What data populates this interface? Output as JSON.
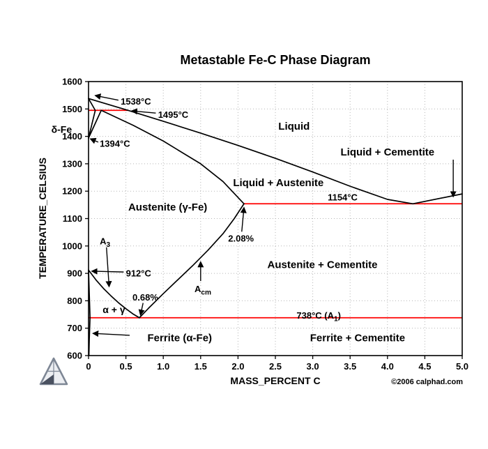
{
  "page": {
    "background": "#ffffff",
    "copyright": "©2006 calphad.com"
  },
  "chart_data": {
    "type": "line",
    "title": "Metastable Fe-C Phase Diagram",
    "xlabel": "MASS_PERCENT C",
    "ylabel": "TEMPERATURE_CELSIUS",
    "xlim": [
      0,
      5
    ],
    "ylim": [
      600,
      1600
    ],
    "xticks": [
      "0",
      "0.5",
      "1.0",
      "1.5",
      "2.0",
      "2.5",
      "3.0",
      "3.5",
      "4.0",
      "4.5",
      "5.0"
    ],
    "yticks": [
      600,
      700,
      800,
      900,
      1000,
      1100,
      1200,
      1300,
      1400,
      1500,
      1600
    ],
    "grid": true,
    "legend": "none",
    "colors": {
      "boundary": "#000000",
      "invariant": "#ff0000",
      "grid": "#b5b5b5",
      "frame": "#000000"
    },
    "series": [
      {
        "name": "liquidus",
        "color": "#000000",
        "points": [
          [
            0,
            1538
          ],
          [
            0.53,
            1495
          ],
          [
            1.0,
            1455
          ],
          [
            1.5,
            1412
          ],
          [
            2.0,
            1367
          ],
          [
            2.5,
            1320
          ],
          [
            3.0,
            1270
          ],
          [
            3.5,
            1218
          ],
          [
            4.0,
            1170
          ],
          [
            4.34,
            1154
          ],
          [
            5.0,
            1190
          ]
        ]
      },
      {
        "name": "delta-solidus",
        "color": "#000000",
        "points": [
          [
            0,
            1538
          ],
          [
            0.09,
            1495
          ]
        ]
      },
      {
        "name": "delta-gamma-upper",
        "color": "#000000",
        "points": [
          [
            0.09,
            1495
          ],
          [
            0,
            1394
          ]
        ]
      },
      {
        "name": "delta-gamma-lower",
        "color": "#000000",
        "points": [
          [
            0.17,
            1495
          ],
          [
            0,
            1394
          ]
        ]
      },
      {
        "name": "austenite-solidus",
        "color": "#000000",
        "points": [
          [
            0.17,
            1495
          ],
          [
            0.6,
            1440
          ],
          [
            1.0,
            1383
          ],
          [
            1.5,
            1300
          ],
          [
            1.8,
            1235
          ],
          [
            2.08,
            1154
          ]
        ]
      },
      {
        "name": "a3-line",
        "color": "#000000",
        "points": [
          [
            0,
            912
          ],
          [
            0.1,
            876
          ],
          [
            0.2,
            845
          ],
          [
            0.3,
            818
          ],
          [
            0.4,
            793
          ],
          [
            0.5,
            771
          ],
          [
            0.6,
            751
          ],
          [
            0.68,
            738
          ]
        ]
      },
      {
        "name": "acm-line",
        "color": "#000000",
        "points": [
          [
            0.68,
            738
          ],
          [
            0.8,
            772
          ],
          [
            1.0,
            826
          ],
          [
            1.2,
            878
          ],
          [
            1.4,
            930
          ],
          [
            1.6,
            985
          ],
          [
            1.8,
            1045
          ],
          [
            1.95,
            1100
          ],
          [
            2.08,
            1154
          ]
        ]
      },
      {
        "name": "alpha-solvus-upper",
        "color": "#000000",
        "points": [
          [
            0,
            912
          ],
          [
            0.02,
            738
          ]
        ]
      },
      {
        "name": "alpha-solvus-lower",
        "color": "#000000",
        "points": [
          [
            0.02,
            738
          ],
          [
            0.01,
            660
          ],
          [
            0.005,
            600
          ]
        ]
      }
    ],
    "invariant_lines": [
      {
        "name": "peritectic-1495",
        "temp": 1495,
        "x0": 0,
        "x1": 0.53,
        "color": "#ff0000"
      },
      {
        "name": "eutectic-1154",
        "temp": 1154,
        "x0": 2.08,
        "x1": 5.0,
        "color": "#ff0000"
      },
      {
        "name": "eutectoid-738",
        "temp": 738,
        "x0": 0,
        "x1": 5.0,
        "color": "#ff0000"
      }
    ],
    "annotations": [
      {
        "name": "label-1538c",
        "parts": [
          {
            "t": "1538°C"
          }
        ],
        "x": 0.43,
        "y": 1527,
        "anchor": "start",
        "size": 13,
        "arrow": [
          0.4,
          1532,
          0.09,
          1549
        ]
      },
      {
        "name": "label-1495c",
        "parts": [
          {
            "t": "1495°C"
          }
        ],
        "x": 0.93,
        "y": 1479,
        "anchor": "start",
        "size": 13,
        "arrow": [
          0.9,
          1485,
          0.58,
          1493
        ]
      },
      {
        "name": "label-1394c",
        "parts": [
          {
            "t": "1394°C"
          }
        ],
        "x": 0.15,
        "y": 1374,
        "anchor": "start",
        "size": 13,
        "arrow": [
          0.13,
          1379,
          0.025,
          1391
        ]
      },
      {
        "name": "label-delta-fe",
        "parts": [
          {
            "t": "δ-Fe"
          }
        ],
        "x": -0.36,
        "y": 1425,
        "anchor": "middle",
        "size": 14
      },
      {
        "name": "label-liquid",
        "parts": [
          {
            "t": "Liquid"
          }
        ],
        "x": 2.75,
        "y": 1438,
        "anchor": "middle",
        "size": 15
      },
      {
        "name": "label-liquid-cementite",
        "parts": [
          {
            "t": "Liquid + Cementite"
          }
        ],
        "x": 4.0,
        "y": 1344,
        "anchor": "middle",
        "size": 15,
        "arrow": [
          4.88,
          1315,
          4.88,
          1180
        ]
      },
      {
        "name": "label-liquid-austenite",
        "parts": [
          {
            "t": "Liquid + Austenite"
          }
        ],
        "x": 2.54,
        "y": 1232,
        "anchor": "middle",
        "size": 15
      },
      {
        "name": "label-austenite",
        "parts": [
          {
            "t": "Austenite (γ-Fe)"
          }
        ],
        "x": 1.06,
        "y": 1143,
        "anchor": "middle",
        "size": 15
      },
      {
        "name": "label-1154c",
        "parts": [
          {
            "t": "1154°C"
          }
        ],
        "x": 3.4,
        "y": 1178,
        "anchor": "middle",
        "size": 13
      },
      {
        "name": "label-2-08pct",
        "parts": [
          {
            "t": "2.08%"
          }
        ],
        "x": 2.04,
        "y": 1028,
        "anchor": "middle",
        "size": 13,
        "arrow": [
          2.05,
          1052,
          2.08,
          1140
        ]
      },
      {
        "name": "label-a3",
        "parts": [
          {
            "t": "A"
          },
          {
            "t": "3",
            "sub": true
          }
        ],
        "x": 0.22,
        "y": 1018,
        "anchor": "middle",
        "size": 13,
        "arrow": [
          0.24,
          995,
          0.275,
          852
        ]
      },
      {
        "name": "label-912c",
        "parts": [
          {
            "t": "912°C"
          }
        ],
        "x": 0.5,
        "y": 900,
        "anchor": "start",
        "size": 13,
        "arrow": [
          0.47,
          905,
          0.045,
          908
        ]
      },
      {
        "name": "label-0-68pct",
        "parts": [
          {
            "t": "0.68%"
          }
        ],
        "x": 0.76,
        "y": 812,
        "anchor": "middle",
        "size": 13,
        "arrow": [
          0.73,
          792,
          0.695,
          748
        ]
      },
      {
        "name": "label-acm",
        "parts": [
          {
            "t": "A"
          },
          {
            "t": "cm",
            "sub": true
          }
        ],
        "x": 1.53,
        "y": 843,
        "anchor": "middle",
        "size": 13,
        "arrow": [
          1.5,
          872,
          1.5,
          942
        ]
      },
      {
        "name": "label-austenite-cementite",
        "parts": [
          {
            "t": "Austenite + Cementite"
          }
        ],
        "x": 3.13,
        "y": 933,
        "anchor": "middle",
        "size": 15
      },
      {
        "name": "label-alpha-gamma",
        "parts": [
          {
            "t": "α + γ"
          }
        ],
        "x": 0.34,
        "y": 768,
        "anchor": "middle",
        "size": 14
      },
      {
        "name": "label-738c-a1",
        "parts": [
          {
            "t": "738°C (A"
          },
          {
            "t": "1",
            "sub": true
          },
          {
            "t": ")"
          }
        ],
        "x": 3.08,
        "y": 747,
        "anchor": "middle",
        "size": 13
      },
      {
        "name": "label-ferrite",
        "parts": [
          {
            "t": "Ferrite (α-Fe)"
          }
        ],
        "x": 1.22,
        "y": 666,
        "anchor": "middle",
        "size": 15,
        "arrow": [
          0.55,
          674,
          0.06,
          681
        ]
      },
      {
        "name": "label-ferrite-cementite",
        "parts": [
          {
            "t": "Ferrite + Cementite"
          }
        ],
        "x": 3.6,
        "y": 666,
        "anchor": "middle",
        "size": 15
      }
    ]
  }
}
